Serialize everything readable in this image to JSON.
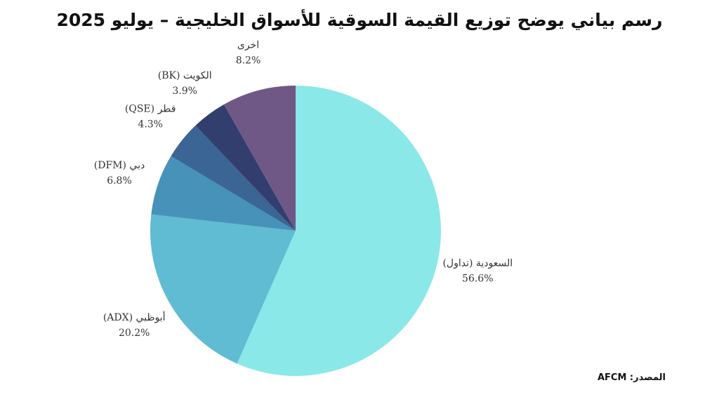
{
  "title": "رسم بياني يوضح توزيع القيمة السوقية للأسواق الخليجية – يوليو 2025",
  "source": "المصدر: AFCM",
  "chart_data": {
    "type": "pie",
    "title": "رسم بياني يوضح توزيع القيمة السوقية للأسواق الخليجية – يوليو 2025",
    "start": "12 o'clock",
    "direction": "clockwise",
    "slices": [
      {
        "label": "السعودية (تداول)",
        "value": 56.6,
        "value_label": "56.6%",
        "color": "#8ae8e8"
      },
      {
        "label": "أبوظبي (ADX)",
        "value": 20.2,
        "value_label": "20.2%",
        "color": "#5fbcd3"
      },
      {
        "label": "دبي (DFM)",
        "value": 6.8,
        "value_label": "6.8%",
        "color": "#4692b8"
      },
      {
        "label": "قطر (QSE)",
        "value": 4.3,
        "value_label": "4.3%",
        "color": "#3a6594"
      },
      {
        "label": "الكويت (BK)",
        "value": 3.9,
        "value_label": "3.9%",
        "color": "#323e6d"
      },
      {
        "label": "اخرى",
        "value": 8.2,
        "value_label": "8.2%",
        "color": "#6f5886"
      }
    ]
  }
}
